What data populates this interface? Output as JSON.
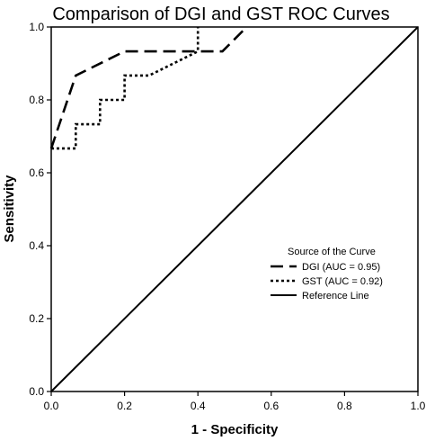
{
  "chart_data": {
    "type": "line",
    "title": "Comparison of DGI and GST ROC Curves",
    "xlabel": "1 - Specificity",
    "ylabel": "Sensitivity",
    "xlim": [
      0.0,
      1.0
    ],
    "ylim": [
      0.0,
      1.0
    ],
    "x_ticks": [
      "0.0",
      "0.2",
      "0.4",
      "0.6",
      "0.8",
      "1.0"
    ],
    "y_ticks": [
      "0.0",
      "0.2",
      "0.4",
      "0.6",
      "0.8",
      "1.0"
    ],
    "grid": false,
    "legend": {
      "title": "Source of the Curve",
      "placement": "right-middle"
    },
    "series": [
      {
        "name": "DGI (AUC = 0.95)",
        "style": "dashed",
        "color": "#000000",
        "x": [
          0.0,
          0.067,
          0.2,
          0.4,
          0.467,
          0.533
        ],
        "y": [
          0.667,
          0.867,
          0.933,
          0.933,
          0.933,
          1.0
        ]
      },
      {
        "name": "GST (AUC = 0.92)",
        "style": "dotted",
        "color": "#000000",
        "x": [
          0.0,
          0.067,
          0.067,
          0.133,
          0.133,
          0.2,
          0.2,
          0.267,
          0.4,
          0.4,
          0.4
        ],
        "y": [
          0.667,
          0.667,
          0.733,
          0.733,
          0.8,
          0.8,
          0.867,
          0.867,
          0.933,
          0.933,
          1.0
        ]
      },
      {
        "name": "Reference Line",
        "style": "solid",
        "color": "#000000",
        "x": [
          0.0,
          1.0
        ],
        "y": [
          0.0,
          1.0
        ]
      }
    ]
  }
}
